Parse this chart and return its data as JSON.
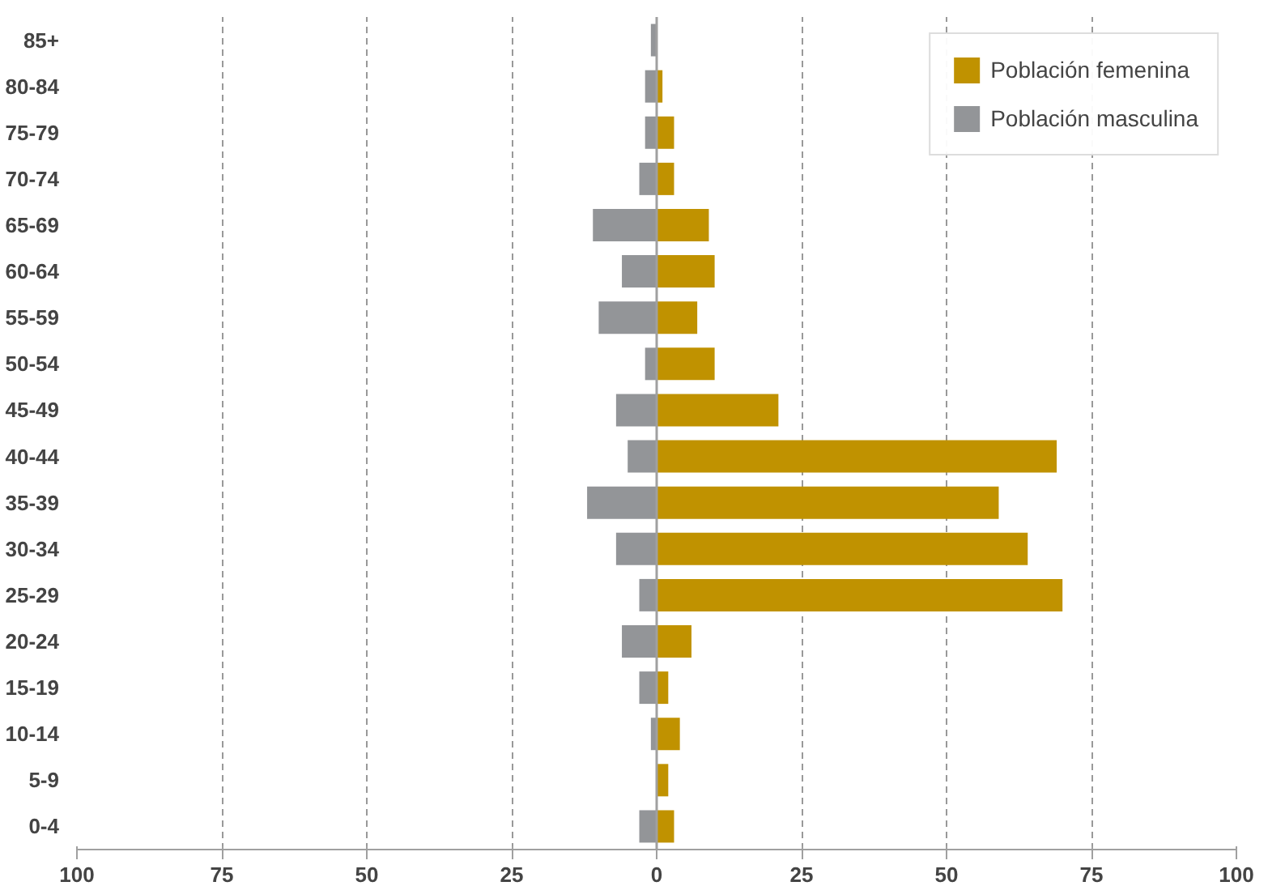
{
  "chart_data": {
    "type": "bar",
    "orientation": "horizontal",
    "categories": [
      "85+",
      "80-84",
      "75-79",
      "70-74",
      "65-69",
      "60-64",
      "55-59",
      "50-54",
      "45-49",
      "40-44",
      "35-39",
      "30-34",
      "25-29",
      "20-24",
      "15-19",
      "10-14",
      "5-9",
      "0-4"
    ],
    "series": [
      {
        "name": "Población femenina",
        "color": "#c09200",
        "values": [
          null,
          1,
          3,
          3,
          9,
          10,
          7,
          10,
          21,
          69,
          59,
          64,
          70,
          6,
          2,
          4,
          2,
          3
        ]
      },
      {
        "name": "Población masculina",
        "color": "#939598",
        "values": [
          -1,
          -2,
          -2,
          -3,
          -11,
          -6,
          -10,
          -2,
          -7,
          -5,
          -12,
          -7,
          -3,
          -6,
          -3,
          -1,
          null,
          -3
        ]
      }
    ],
    "xlim": [
      -100,
      100
    ],
    "xticks": [
      {
        "value": -100,
        "label": "100"
      },
      {
        "value": -75,
        "label": "75"
      },
      {
        "value": -50,
        "label": "50"
      },
      {
        "value": -25,
        "label": "25"
      },
      0,
      25,
      50,
      75,
      100
    ],
    "grid": "x",
    "legend": "top right",
    "stacked": true
  }
}
